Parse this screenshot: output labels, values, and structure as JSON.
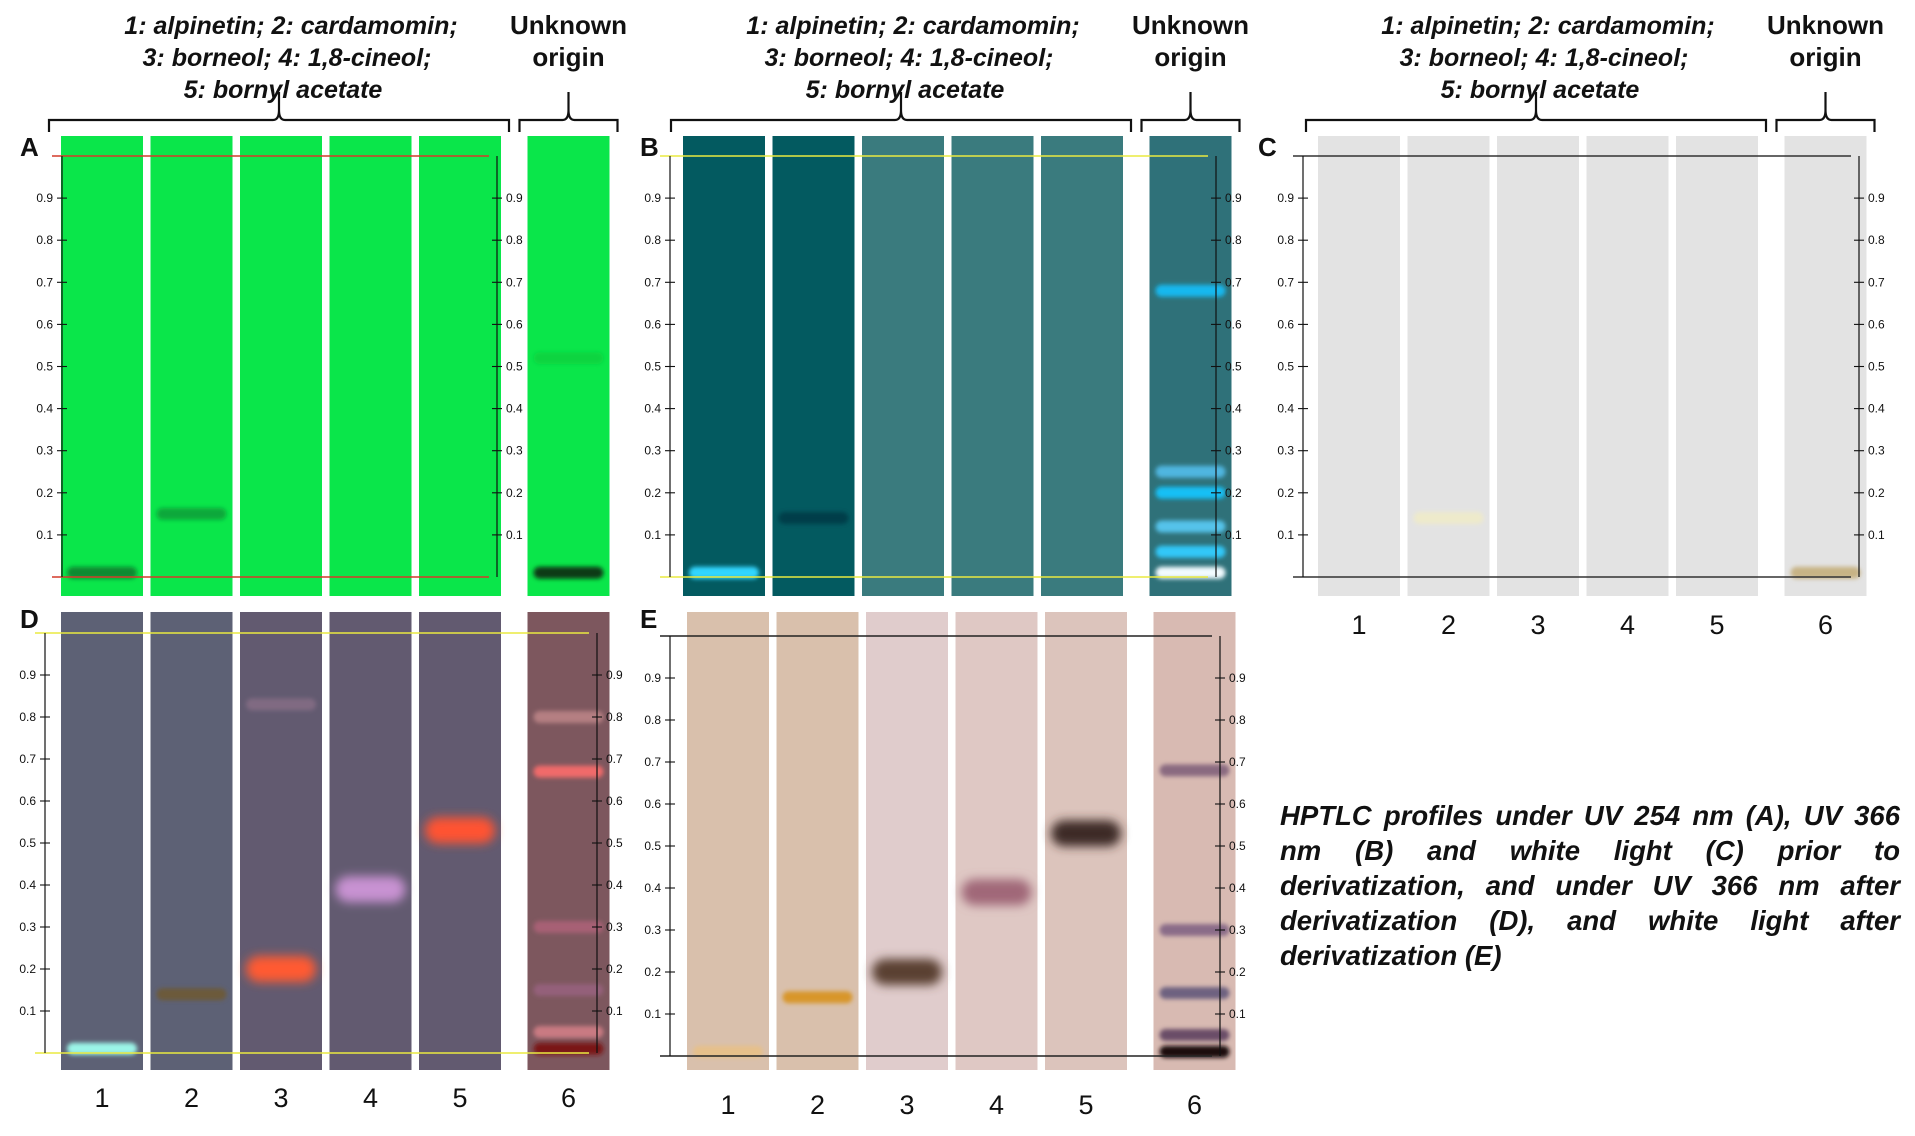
{
  "header": {
    "standards_lines": [
      "1: alpinetin; 2: cardamomin;",
      "3: borneol; 4: 1,8-cineol;",
      "5: bornyl acetate"
    ],
    "unknown_lines": [
      "Unknown",
      "origin"
    ]
  },
  "rf_ticks": [
    "0.1",
    "0.2",
    "0.3",
    "0.4",
    "0.5",
    "0.6",
    "0.7",
    "0.8",
    "0.9"
  ],
  "lane_labels": [
    "1",
    "2",
    "3",
    "4",
    "5",
    "6"
  ],
  "caption": "HPTLC profiles under UV 254 nm (A), UV 366 nm (B) and white light (C) prior to derivatization, and under UV 366 nm after derivatization (D), and white light after derivatization (E)",
  "panels": [
    {
      "label": "A",
      "condition": "UV 254 nm",
      "plate_color": "#0ae64a",
      "guide_color": "#d43a2a",
      "bands": [
        {
          "lane": 1,
          "rf": 0.01,
          "color": "#0c8a33"
        },
        {
          "lane": 2,
          "rf": 0.15,
          "color": "#07a83a"
        },
        {
          "lane": 6,
          "rf": 0.52,
          "color": "#07d441"
        },
        {
          "lane": 6,
          "rf": 0.01,
          "color": "#0b3a18"
        }
      ]
    },
    {
      "label": "B",
      "condition": "UV 366 nm",
      "plate_colors": [
        "#035a60",
        "#035a60",
        "#3a7b7e",
        "#3a7b7e",
        "#3a7b7e",
        "#2f7179"
      ],
      "guide_color": "#eaea40",
      "bands": [
        {
          "lane": 1,
          "rf": 0.01,
          "color": "#33d6ff"
        },
        {
          "lane": 2,
          "rf": 0.14,
          "color": "#023c48"
        },
        {
          "lane": 6,
          "rf": 0.68,
          "color": "#18b8ee"
        },
        {
          "lane": 6,
          "rf": 0.25,
          "color": "#4fb6e0"
        },
        {
          "lane": 6,
          "rf": 0.2,
          "color": "#16c0f5"
        },
        {
          "lane": 6,
          "rf": 0.12,
          "color": "#55c3ea"
        },
        {
          "lane": 6,
          "rf": 0.06,
          "color": "#30c8f8"
        },
        {
          "lane": 6,
          "rf": 0.01,
          "color": "#f2fbff"
        }
      ]
    },
    {
      "label": "C",
      "condition": "White light",
      "plate_color": "#e3e3e3",
      "guide_color": "#333333",
      "bands": [
        {
          "lane": 2,
          "rf": 0.14,
          "color": "#eeeacb"
        },
        {
          "lane": 6,
          "rf": 0.01,
          "color": "#c7b385"
        }
      ]
    },
    {
      "label": "D",
      "condition": "UV 366 nm, derivatized",
      "plate_colors": [
        "#5d6175",
        "#5d6175",
        "#625a70",
        "#625a70",
        "#625a70",
        "#7d575e"
      ],
      "guide_color": "#eaea40",
      "bands": [
        {
          "lane": 1,
          "rf": 0.01,
          "color": "#9bf5e8"
        },
        {
          "lane": 2,
          "rf": 0.14,
          "color": "#6c5a3a"
        },
        {
          "lane": 3,
          "rf": 0.2,
          "color": "#ff5a30"
        },
        {
          "lane": 3,
          "rf": 0.83,
          "color": "#806a82"
        },
        {
          "lane": 4,
          "rf": 0.39,
          "color": "#c892d2"
        },
        {
          "lane": 5,
          "rf": 0.53,
          "color": "#ff5230"
        },
        {
          "lane": 6,
          "rf": 0.8,
          "color": "#b57f82"
        },
        {
          "lane": 6,
          "rf": 0.67,
          "color": "#f06a6a"
        },
        {
          "lane": 6,
          "rf": 0.3,
          "color": "#a76074"
        },
        {
          "lane": 6,
          "rf": 0.15,
          "color": "#94607a"
        },
        {
          "lane": 6,
          "rf": 0.05,
          "color": "#c97a82"
        },
        {
          "lane": 6,
          "rf": 0.01,
          "color": "#7a1616"
        }
      ]
    },
    {
      "label": "E",
      "condition": "White light, derivatized",
      "plate_colors": [
        "#d9c0ac",
        "#d9c0ac",
        "#e0cccc",
        "#dfc8c4",
        "#dcc4bc",
        "#d8bab2"
      ],
      "guide_color": "#222222",
      "bands": [
        {
          "lane": 1,
          "rf": 0.01,
          "color": "#e6c08a"
        },
        {
          "lane": 2,
          "rf": 0.14,
          "color": "#d8962a"
        },
        {
          "lane": 3,
          "rf": 0.2,
          "color": "#5a4030"
        },
        {
          "lane": 4,
          "rf": 0.39,
          "color": "#a06878"
        },
        {
          "lane": 5,
          "rf": 0.53,
          "color": "#3d2a28"
        },
        {
          "lane": 6,
          "rf": 0.68,
          "color": "#8a6a80"
        },
        {
          "lane": 6,
          "rf": 0.3,
          "color": "#8a6c88"
        },
        {
          "lane": 6,
          "rf": 0.15,
          "color": "#6e6280"
        },
        {
          "lane": 6,
          "rf": 0.05,
          "color": "#6a4e68"
        },
        {
          "lane": 6,
          "rf": 0.01,
          "color": "#1a0a10"
        }
      ]
    }
  ]
}
